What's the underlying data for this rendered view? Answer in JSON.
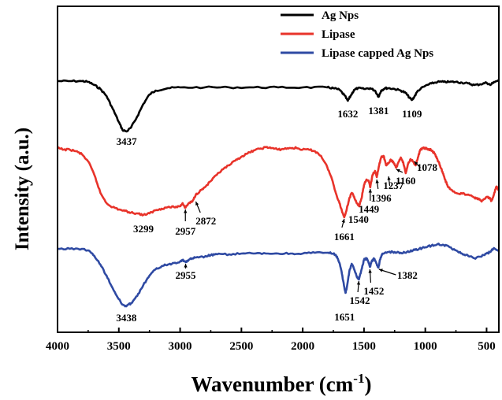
{
  "chart_data": {
    "type": "line",
    "xlabel": "Wavenumber (cm",
    "xlabel_sup": "-1",
    "xlabel_close": ")",
    "ylabel": "Intensity (a.u.)",
    "xlim": [
      4000,
      400
    ],
    "x_reversed": true,
    "xticks": [
      4000,
      3500,
      3000,
      2500,
      2000,
      1500,
      1000,
      500
    ],
    "y_ticks_shown": false,
    "grid": false,
    "legend_position": "top-right",
    "series": [
      {
        "name": "Ag Nps",
        "color": "#000000",
        "points": [
          [
            4000,
            103
          ],
          [
            3900,
            103
          ],
          [
            3800,
            103
          ],
          [
            3750,
            104
          ],
          [
            3700,
            108
          ],
          [
            3650,
            113
          ],
          [
            3600,
            122
          ],
          [
            3550,
            138
          ],
          [
            3500,
            155
          ],
          [
            3470,
            165
          ],
          [
            3437,
            167
          ],
          [
            3400,
            162
          ],
          [
            3350,
            148
          ],
          [
            3300,
            132
          ],
          [
            3250,
            120
          ],
          [
            3200,
            115
          ],
          [
            3100,
            112
          ],
          [
            3000,
            111
          ],
          [
            2800,
            111
          ],
          [
            2600,
            111
          ],
          [
            2400,
            111
          ],
          [
            2200,
            111
          ],
          [
            2000,
            111
          ],
          [
            1800,
            111
          ],
          [
            1750,
            112
          ],
          [
            1700,
            114
          ],
          [
            1660,
            121
          ],
          [
            1632,
            128
          ],
          [
            1610,
            122
          ],
          [
            1580,
            114
          ],
          [
            1550,
            112
          ],
          [
            1500,
            113
          ],
          [
            1450,
            112
          ],
          [
            1410,
            115
          ],
          [
            1381,
            123
          ],
          [
            1360,
            115
          ],
          [
            1330,
            112
          ],
          [
            1300,
            112
          ],
          [
            1250,
            113
          ],
          [
            1200,
            115
          ],
          [
            1160,
            118
          ],
          [
            1130,
            124
          ],
          [
            1109,
            127
          ],
          [
            1090,
            123
          ],
          [
            1060,
            115
          ],
          [
            1000,
            109
          ],
          [
            950,
            106
          ],
          [
            900,
            104
          ],
          [
            850,
            104
          ],
          [
            800,
            104
          ],
          [
            750,
            104
          ],
          [
            700,
            105
          ],
          [
            650,
            106
          ],
          [
            600,
            108
          ],
          [
            550,
            107
          ],
          [
            500,
            105
          ],
          [
            470,
            108
          ],
          [
            440,
            104
          ],
          [
            400,
            102
          ]
        ]
      },
      {
        "name": "Lipase",
        "color": "#e8332a",
        "points": [
          [
            4000,
            188
          ],
          [
            3950,
            190
          ],
          [
            3900,
            190
          ],
          [
            3850,
            192
          ],
          [
            3800,
            196
          ],
          [
            3750,
            205
          ],
          [
            3700,
            222
          ],
          [
            3650,
            245
          ],
          [
            3600,
            258
          ],
          [
            3550,
            263
          ],
          [
            3500,
            266
          ],
          [
            3450,
            268
          ],
          [
            3400,
            270
          ],
          [
            3350,
            271
          ],
          [
            3299,
            273
          ],
          [
            3250,
            271
          ],
          [
            3200,
            267
          ],
          [
            3150,
            265
          ],
          [
            3100,
            263
          ],
          [
            3050,
            263
          ],
          [
            3000,
            262
          ],
          [
            2980,
            258
          ],
          [
            2957,
            264
          ],
          [
            2930,
            258
          ],
          [
            2900,
            256
          ],
          [
            2872,
            247
          ],
          [
            2840,
            243
          ],
          [
            2800,
            238
          ],
          [
            2750,
            230
          ],
          [
            2700,
            222
          ],
          [
            2650,
            215
          ],
          [
            2600,
            210
          ],
          [
            2550,
            204
          ],
          [
            2500,
            199
          ],
          [
            2450,
            195
          ],
          [
            2400,
            191
          ],
          [
            2350,
            189
          ],
          [
            2300,
            187
          ],
          [
            2250,
            188
          ],
          [
            2200,
            190
          ],
          [
            2150,
            189
          ],
          [
            2100,
            188
          ],
          [
            2050,
            188
          ],
          [
            2000,
            190
          ],
          [
            1950,
            190
          ],
          [
            1900,
            192
          ],
          [
            1850,
            198
          ],
          [
            1800,
            212
          ],
          [
            1760,
            228
          ],
          [
            1730,
            245
          ],
          [
            1700,
            258
          ],
          [
            1680,
            268
          ],
          [
            1661,
            276
          ],
          [
            1640,
            265
          ],
          [
            1620,
            252
          ],
          [
            1600,
            245
          ],
          [
            1580,
            250
          ],
          [
            1560,
            258
          ],
          [
            1540,
            262
          ],
          [
            1520,
            252
          ],
          [
            1500,
            235
          ],
          [
            1480,
            228
          ],
          [
            1460,
            230
          ],
          [
            1449,
            238
          ],
          [
            1430,
            222
          ],
          [
            1410,
            217
          ],
          [
            1396,
            225
          ],
          [
            1380,
            212
          ],
          [
            1360,
            200
          ],
          [
            1340,
            198
          ],
          [
            1320,
            210
          ],
          [
            1300,
            207
          ],
          [
            1280,
            203
          ],
          [
            1260,
            206
          ],
          [
            1237,
            213
          ],
          [
            1215,
            205
          ],
          [
            1200,
            200
          ],
          [
            1180,
            206
          ],
          [
            1160,
            220
          ],
          [
            1140,
            208
          ],
          [
            1120,
            202
          ],
          [
            1100,
            205
          ],
          [
            1078,
            210
          ],
          [
            1060,
            200
          ],
          [
            1040,
            190
          ],
          [
            1020,
            188
          ],
          [
            1000,
            188
          ],
          [
            980,
            190
          ],
          [
            960,
            190
          ],
          [
            940,
            192
          ],
          [
            920,
            196
          ],
          [
            900,
            203
          ],
          [
            880,
            210
          ],
          [
            860,
            218
          ],
          [
            840,
            228
          ],
          [
            820,
            235
          ],
          [
            800,
            240
          ],
          [
            750,
            245
          ],
          [
            700,
            246
          ],
          [
            650,
            247
          ],
          [
            600,
            251
          ],
          [
            580,
            252
          ],
          [
            560,
            253
          ],
          [
            540,
            256
          ],
          [
            520,
            253
          ],
          [
            500,
            250
          ],
          [
            480,
            251
          ],
          [
            460,
            255
          ],
          [
            440,
            247
          ],
          [
            420,
            237
          ],
          [
            400,
            242
          ]
        ]
      },
      {
        "name": "Lipase capped Ag Nps",
        "color": "#2f4aa3",
        "points": [
          [
            4000,
            316
          ],
          [
            3900,
            316
          ],
          [
            3800,
            316
          ],
          [
            3750,
            318
          ],
          [
            3700,
            325
          ],
          [
            3650,
            336
          ],
          [
            3600,
            350
          ],
          [
            3550,
            366
          ],
          [
            3500,
            380
          ],
          [
            3470,
            387
          ],
          [
            3438,
            389
          ],
          [
            3400,
            385
          ],
          [
            3350,
            376
          ],
          [
            3300,
            362
          ],
          [
            3250,
            350
          ],
          [
            3200,
            342
          ],
          [
            3150,
            338
          ],
          [
            3100,
            336
          ],
          [
            3050,
            334
          ],
          [
            3000,
            332
          ],
          [
            2980,
            330
          ],
          [
            2955,
            333
          ],
          [
            2930,
            330
          ],
          [
            2900,
            328
          ],
          [
            2850,
            327
          ],
          [
            2800,
            326
          ],
          [
            2750,
            324
          ],
          [
            2700,
            323
          ],
          [
            2600,
            323
          ],
          [
            2500,
            322
          ],
          [
            2400,
            322
          ],
          [
            2300,
            322
          ],
          [
            2200,
            322
          ],
          [
            2100,
            322
          ],
          [
            2000,
            322
          ],
          [
            1900,
            321
          ],
          [
            1800,
            321
          ],
          [
            1750,
            322
          ],
          [
            1720,
            326
          ],
          [
            1700,
            334
          ],
          [
            1680,
            348
          ],
          [
            1660,
            365
          ],
          [
            1651,
            372
          ],
          [
            1640,
            365
          ],
          [
            1620,
            345
          ],
          [
            1600,
            335
          ],
          [
            1580,
            342
          ],
          [
            1560,
            351
          ],
          [
            1542,
            355
          ],
          [
            1520,
            342
          ],
          [
            1500,
            330
          ],
          [
            1480,
            328
          ],
          [
            1465,
            332
          ],
          [
            1452,
            339
          ],
          [
            1440,
            333
          ],
          [
            1420,
            328
          ],
          [
            1400,
            334
          ],
          [
            1382,
            340
          ],
          [
            1370,
            330
          ],
          [
            1350,
            322
          ],
          [
            1300,
            320
          ],
          [
            1250,
            320
          ],
          [
            1200,
            321
          ],
          [
            1150,
            320
          ],
          [
            1100,
            318
          ],
          [
            1050,
            316
          ],
          [
            1000,
            314
          ],
          [
            950,
            312
          ],
          [
            900,
            310
          ],
          [
            850,
            311
          ],
          [
            800,
            314
          ],
          [
            750,
            318
          ],
          [
            700,
            322
          ],
          [
            650,
            325
          ],
          [
            600,
            328
          ],
          [
            550,
            326
          ],
          [
            500,
            322
          ],
          [
            470,
            320
          ],
          [
            440,
            315
          ],
          [
            400,
            318
          ]
        ]
      }
    ],
    "annotations": [
      {
        "text": "3437",
        "series": "Ag Nps"
      },
      {
        "text": "1632",
        "series": "Ag Nps"
      },
      {
        "text": "1381",
        "series": "Ag Nps"
      },
      {
        "text": "1109",
        "series": "Ag Nps"
      },
      {
        "text": "3299",
        "series": "Lipase"
      },
      {
        "text": "2957",
        "series": "Lipase"
      },
      {
        "text": "2872",
        "series": "Lipase"
      },
      {
        "text": "1661",
        "series": "Lipase"
      },
      {
        "text": "1540",
        "series": "Lipase"
      },
      {
        "text": "1449",
        "series": "Lipase"
      },
      {
        "text": "1396",
        "series": "Lipase"
      },
      {
        "text": "1237",
        "series": "Lipase"
      },
      {
        "text": "1160",
        "series": "Lipase"
      },
      {
        "text": "1078",
        "series": "Lipase"
      },
      {
        "text": "3438",
        "series": "Lipase capped Ag Nps"
      },
      {
        "text": "2955",
        "series": "Lipase capped Ag Nps"
      },
      {
        "text": "1651",
        "series": "Lipase capped Ag Nps"
      },
      {
        "text": "1542",
        "series": "Lipase capped Ag Nps"
      },
      {
        "text": "1452",
        "series": "Lipase capped Ag Nps"
      },
      {
        "text": "1382",
        "series": "Lipase capped Ag Nps"
      }
    ]
  }
}
